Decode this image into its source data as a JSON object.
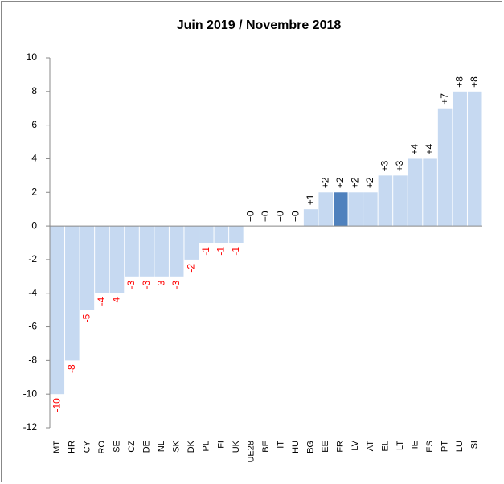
{
  "chart_data": {
    "type": "bar",
    "title": "Juin 2019 / Novembre 2018",
    "categories": [
      "MT",
      "HR",
      "CY",
      "RO",
      "SE",
      "CZ",
      "DE",
      "NL",
      "SK",
      "DK",
      "PL",
      "FI",
      "UK",
      "UE28",
      "BE",
      "IT",
      "HU",
      "BG",
      "EE",
      "FR",
      "LV",
      "AT",
      "EL",
      "LT",
      "IE",
      "ES",
      "PT",
      "LU",
      "SI"
    ],
    "values": [
      -10,
      -8,
      -5,
      -4,
      -4,
      -3,
      -3,
      -3,
      -3,
      -2,
      -1,
      -1,
      -1,
      0,
      0,
      0,
      0,
      1,
      2,
      2,
      2,
      2,
      3,
      3,
      4,
      4,
      7,
      8,
      8
    ],
    "value_labels": [
      "-10",
      "-8",
      "-5",
      "-4",
      "-4",
      "-3",
      "-3",
      "-3",
      "-3",
      "-2",
      "-1",
      "-1",
      "-1",
      "+0",
      "+0",
      "+0",
      "+0",
      "+1",
      "+2",
      "+2",
      "+2",
      "+2",
      "+3",
      "+3",
      "+4",
      "+4",
      "+7",
      "+8",
      "+8"
    ],
    "colors": [
      "#c6d9f1",
      "#c6d9f1",
      "#c6d9f1",
      "#c6d9f1",
      "#c6d9f1",
      "#c6d9f1",
      "#c6d9f1",
      "#c6d9f1",
      "#c6d9f1",
      "#c6d9f1",
      "#c6d9f1",
      "#c6d9f1",
      "#c6d9f1",
      "#c6d9f1",
      "#c6d9f1",
      "#c6d9f1",
      "#c6d9f1",
      "#c6d9f1",
      "#c6d9f1",
      "#4f81bd",
      "#c6d9f1",
      "#c6d9f1",
      "#c6d9f1",
      "#c6d9f1",
      "#c6d9f1",
      "#c6d9f1",
      "#c6d9f1",
      "#c6d9f1",
      "#c6d9f1"
    ],
    "label_colors": {
      "negative": "#ff0000",
      "positive": "#000000"
    },
    "ylim": [
      -12,
      10
    ],
    "yticks": [
      -12,
      -10,
      -8,
      -6,
      -4,
      -2,
      0,
      2,
      4,
      6,
      8,
      10
    ],
    "grid": false
  }
}
